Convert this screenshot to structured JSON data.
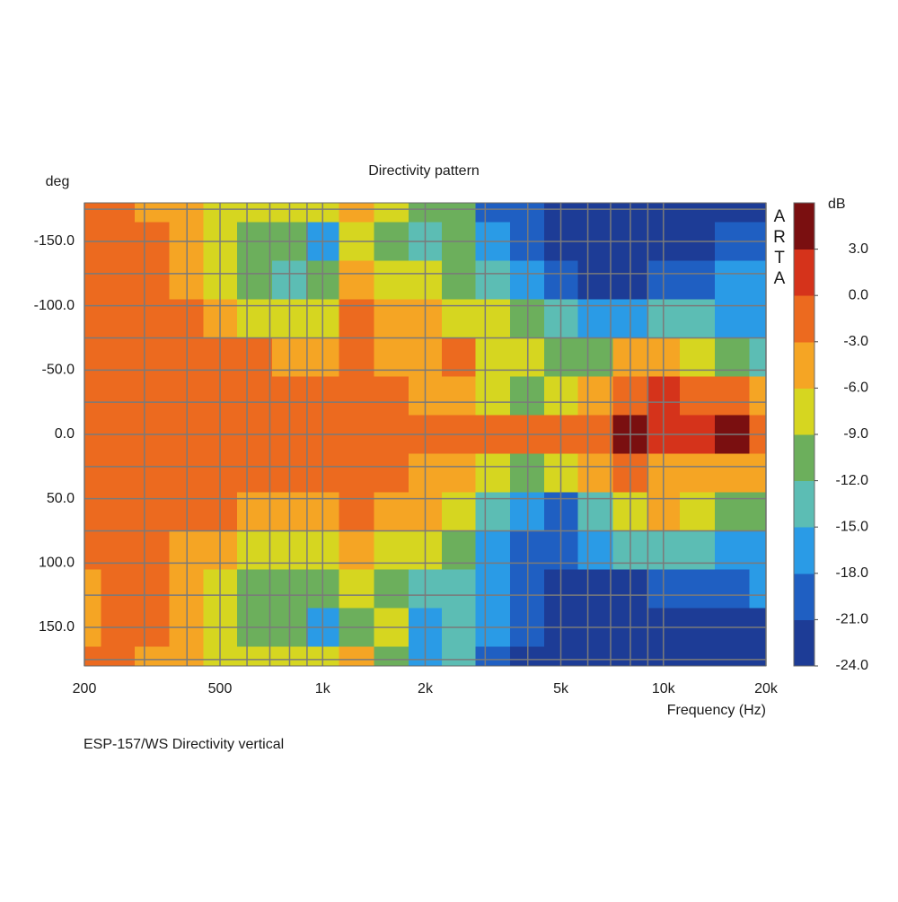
{
  "chart_data": {
    "type": "heatmap",
    "title": "Directivity pattern",
    "y_label": "deg",
    "x_label": "Frequency (Hz)",
    "z_label": "dB",
    "watermark": "ARTA",
    "caption": "ESP-157/WS  Directivity vertical",
    "xscale": "log",
    "xlim": [
      200,
      20000
    ],
    "xticks": [
      200,
      500,
      {
        "value": 1000,
        "label": "1k"
      },
      {
        "value": 2000,
        "label": "2k"
      },
      {
        "value": 5000,
        "label": "5k"
      },
      {
        "value": 10000,
        "label": "10k"
      },
      {
        "value": 20000,
        "label": "20k"
      }
    ],
    "x_minor_ticks": [
      300,
      400,
      600,
      700,
      800,
      900,
      3000,
      4000,
      6000,
      7000,
      8000,
      9000
    ],
    "ylim": [
      -180,
      180
    ],
    "y_reversed": true,
    "yticks": [
      {
        "value": -150,
        "label": "-150.0"
      },
      {
        "value": -100,
        "label": "-100.0"
      },
      {
        "value": -50,
        "label": "-50.0"
      },
      {
        "value": 0,
        "label": "0.0"
      },
      {
        "value": 50,
        "label": "50.0"
      },
      {
        "value": 100,
        "label": "100.0"
      },
      {
        "value": 150,
        "label": "150.0"
      }
    ],
    "y_minor_ticks": [
      -175,
      -125,
      -75,
      -25,
      25,
      75,
      125,
      175
    ],
    "grid": true,
    "zlim": [
      -24,
      6
    ],
    "zticks": [
      {
        "value": 3,
        "label": "3.0"
      },
      {
        "value": 0,
        "label": "0.0"
      },
      {
        "value": -3,
        "label": "-3.0"
      },
      {
        "value": -6,
        "label": "-6.0"
      },
      {
        "value": -9,
        "label": "-9.0"
      },
      {
        "value": -12,
        "label": "-12.0"
      },
      {
        "value": -15,
        "label": "-15.0"
      },
      {
        "value": -18,
        "label": "-18.0"
      },
      {
        "value": -21,
        "label": "-21.0"
      },
      {
        "value": -24,
        "label": "-24.0"
      }
    ],
    "levels": [
      -24,
      -21,
      -18,
      -15,
      -12,
      -9,
      -6,
      -3,
      0,
      3,
      6
    ],
    "colors": [
      "#1d3c96",
      "#1f5fc2",
      "#2a9be6",
      "#5cbdb4",
      "#6caf5c",
      "#d6d620",
      "#f5a524",
      "#ec6a1f",
      "#d5331b",
      "#7a0f10"
    ],
    "x": [
      200,
      250,
      315,
      400,
      500,
      630,
      800,
      1000,
      1250,
      1600,
      2000,
      2500,
      3150,
      4000,
      5000,
      6300,
      8000,
      10000,
      12500,
      16000,
      20000
    ],
    "y": [
      -180,
      -150,
      -120,
      -90,
      -60,
      -30,
      0,
      30,
      60,
      90,
      120,
      150,
      180
    ],
    "z": [
      [
        -2,
        -2,
        -4,
        -5,
        -7,
        -7,
        -8,
        -7,
        -4,
        -8,
        -11,
        -12,
        -20,
        -20,
        -22,
        -23,
        -23,
        -23,
        -23,
        -23,
        -23
      ],
      [
        -2,
        -2,
        -2,
        -5,
        -7,
        -11,
        -10,
        -16,
        -8,
        -11,
        -13,
        -11,
        -16,
        -19,
        -22,
        -23,
        -23,
        -23,
        -22,
        -21,
        -19
      ],
      [
        -2,
        -2,
        -2,
        -4,
        -7,
        -11,
        -13,
        -11,
        -5,
        -8,
        -8,
        -10,
        -13,
        -16,
        -19,
        -22,
        -22,
        -21,
        -19,
        -17,
        -16
      ],
      [
        -2,
        -2,
        -2,
        -3,
        -4,
        -7,
        -7,
        -7,
        -1,
        -5,
        -6,
        -7,
        -9,
        -11,
        -14,
        -17,
        -16,
        -13,
        -14,
        -17,
        -16
      ],
      [
        -2,
        -2,
        -1,
        -1,
        -1,
        -2,
        -4,
        -5,
        -0.5,
        -5,
        -4,
        -1,
        -7,
        -8,
        -10,
        -10,
        -5,
        -4,
        -7,
        -11,
        -13
      ],
      [
        -1,
        -1,
        -1,
        -1,
        -1,
        -1,
        -1,
        -2,
        -0.5,
        -3,
        -5,
        -6,
        -9,
        -10,
        -9,
        -6,
        -1,
        2,
        -1,
        -2,
        -5
      ],
      [
        -1,
        -1,
        -1,
        -1,
        -1,
        -1,
        -1,
        -1,
        -1,
        -1,
        -1,
        -2,
        -2,
        -2,
        -2,
        -1,
        4,
        2,
        1,
        3,
        -1
      ],
      [
        -1,
        -1,
        -1,
        -1,
        -1,
        -1,
        -1,
        -1,
        -1,
        -3,
        -4,
        -5,
        -8,
        -10,
        -9,
        -6,
        -3,
        -4,
        -5,
        -4,
        -5
      ],
      [
        -1,
        -1,
        -2,
        -2,
        -3,
        -4,
        -4,
        -5,
        -1,
        -5,
        -6,
        -9,
        -14,
        -17,
        -19,
        -14,
        -8,
        -6,
        -9,
        -11,
        -12
      ],
      [
        -2,
        -2,
        -2,
        -4,
        -5,
        -7,
        -7,
        -8,
        -4,
        -7,
        -9,
        -11,
        -16,
        -20,
        -21,
        -17,
        -15,
        -14,
        -15,
        -17,
        -17
      ],
      [
        -4,
        -2,
        -2,
        -5,
        -8,
        -11,
        -12,
        -10,
        -7,
        -10,
        -14,
        -13,
        -18,
        -20,
        -22,
        -22,
        -22,
        -21,
        -19,
        -19,
        -18
      ],
      [
        -4,
        -2,
        -3,
        -6,
        -7,
        -10,
        -11,
        -18,
        -10,
        -8,
        -17,
        -13,
        -18,
        -21,
        -22,
        -23,
        -23,
        -22,
        -22,
        -22,
        -22
      ],
      [
        -2,
        -2,
        -4,
        -5,
        -7,
        -8,
        -8,
        -9,
        -6,
        -10,
        -18,
        -14,
        -21,
        -22,
        -23,
        -23,
        -23,
        -23,
        -23,
        -23,
        -23
      ]
    ]
  }
}
